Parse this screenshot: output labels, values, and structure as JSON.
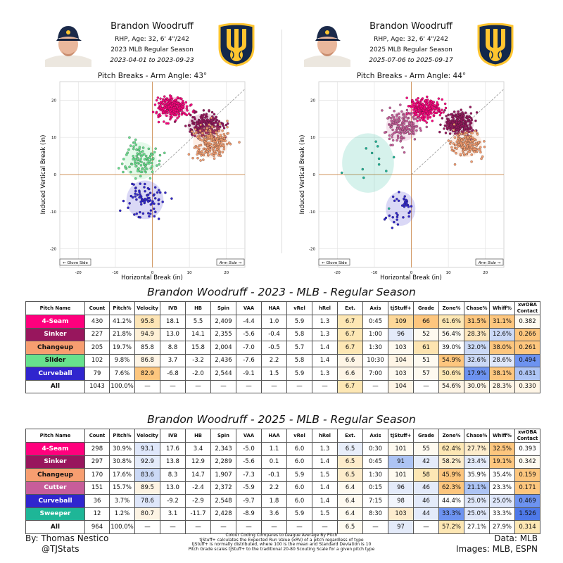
{
  "left_header": {
    "name": "Brandon Woodruff",
    "info": "RHP, Age: 32, 6' 4\"/242",
    "season": "2023 MLB Regular Season",
    "dates": "2023-04-01 to 2023-09-23"
  },
  "right_header": {
    "name": "Brandon Woodruff",
    "info": "RHP, Age: 32, 6' 4\"/242",
    "season": "2025 MLB Regular Season",
    "dates": "2025-07-06 to 2025-09-17"
  },
  "left_plot": {
    "title": "Pitch Breaks - Arm Angle: 43°",
    "xlabel": "Horizontal Break (in)",
    "ylabel": "Induced Vertical Break (in)",
    "glove": "← Glove Side",
    "arm": "Arm Side →"
  },
  "right_plot": {
    "title": "Pitch Breaks - Arm Angle: 44°",
    "xlabel": "Horizontal Break (in)",
    "ylabel": "Induced Vertical Break (in)",
    "glove": "← Glove Side",
    "arm": "Arm Side →"
  },
  "x_ticks": [
    "-20",
    "-10",
    "0",
    "10",
    "20"
  ],
  "y_ticks": [
    "20",
    "10",
    "0",
    "-10",
    "-20"
  ],
  "table1_title": "Brandon Woodruff - 2023 - MLB - Regular Season",
  "table2_title": "Brandon Woodruff - 2025 - MLB - Regular Season",
  "columns": [
    "Pitch Name",
    "Count",
    "Pitch%",
    "Velocity",
    "IVB",
    "HB",
    "Spin",
    "VAA",
    "HAA",
    "vRel",
    "hRel",
    "Ext.",
    "Axis",
    "tjStuff+",
    "Grade",
    "Zone%",
    "Chase%",
    "Whiff%",
    "xwOBA Contact"
  ],
  "table1_rows": [
    {
      "cells": [
        "4-Seam",
        "430",
        "41.2%",
        "95.8",
        "18.1",
        "5.5",
        "2,409",
        "-4.4",
        "1.0",
        "5.9",
        "1.3",
        "6.7",
        "0:45",
        "109",
        "66",
        "61.6%",
        "31.5%",
        "31.1%",
        "0.382"
      ],
      "bg": {
        "0": "#ff007d",
        "3": "#fde5b6",
        "11": "#fde7b4",
        "13": "#fdd899",
        "14": "#fdc67e",
        "15": "#fde7b4",
        "16": "#fdc67e",
        "17": "#fdc67e",
        "18": "#fefaf0"
      }
    },
    {
      "cells": [
        "Sinker",
        "227",
        "21.8%",
        "94.9",
        "13.0",
        "14.1",
        "2,355",
        "-5.6",
        "-0.4",
        "5.8",
        "1.3",
        "6.7",
        "1:00",
        "96",
        "52",
        "56.4%",
        "28.3%",
        "12.6%",
        "0.266"
      ],
      "bg": {
        "0": "#98165d",
        "3": "#fef0d6",
        "11": "#fde7b4",
        "13": "#e4ebfa",
        "14": "#fefaf0",
        "15": "#fefaf0",
        "16": "#fde6bd",
        "17": "#cbd9f6",
        "18": "#fdc67e"
      }
    },
    {
      "cells": [
        "Changeup",
        "205",
        "19.7%",
        "85.8",
        "8.8",
        "15.8",
        "2,004",
        "-7.0",
        "-0.5",
        "5.7",
        "1.4",
        "6.7",
        "1:30",
        "103",
        "61",
        "39.0%",
        "32.0%",
        "38.0%",
        "0.261"
      ],
      "bg": {
        "0": "#f79e70",
        "11": "#fde7b4",
        "13": "#fefaf0",
        "14": "#fde4b0",
        "15": "#fefefe",
        "16": "#cbd9f6",
        "17": "#fdc67e",
        "18": "#fdc67e"
      }
    },
    {
      "cells": [
        "Slider",
        "102",
        "9.8%",
        "86.8",
        "3.7",
        "-3.2",
        "2,436",
        "-7.6",
        "2.2",
        "5.8",
        "1.4",
        "6.6",
        "10:30",
        "104",
        "51",
        "54.9%",
        "32.6%",
        "28.6%",
        "0.494"
      ],
      "bg": {
        "0": "#67e18d",
        "3": "#fef5e6",
        "11": "#fef5e6",
        "13": "#fef5e6",
        "14": "#fefaf0",
        "15": "#fdc67e",
        "16": "#cbd9f6",
        "17": "#dfe7fa",
        "18": "#6d93f0"
      }
    },
    {
      "cells": [
        "Curveball",
        "79",
        "7.6%",
        "82.9",
        "-6.8",
        "-2.0",
        "2,544",
        "-9.1",
        "1.5",
        "5.9",
        "1.3",
        "6.6",
        "7:00",
        "103",
        "57",
        "50.6%",
        "17.9%",
        "38.1%",
        "0.431"
      ],
      "bg": {
        "0": "#3025ce",
        "3": "#fdc67e",
        "11": "#fef5e6",
        "13": "#fefaf0",
        "14": "#fefaf0",
        "15": "#fde7b4",
        "16": "#6d93f0",
        "17": "#fdc67e",
        "18": "#adc4f4"
      }
    },
    {
      "cells": [
        "All",
        "1043",
        "100.0%",
        "—",
        "—",
        "—",
        "—",
        "—",
        "—",
        "—",
        "—",
        "6.7",
        "—",
        "104",
        "—",
        "54.6%",
        "30.0%",
        "28.3%",
        "0.330"
      ],
      "bg": {
        "11": "#fde7b4",
        "13": "#fef5e6",
        "15": "#fef5e6",
        "16": "#fef5e6",
        "17": "#fef5e6",
        "18": "#fef5e6"
      }
    }
  ],
  "table2_rows": [
    {
      "cells": [
        "4-Seam",
        "298",
        "30.9%",
        "93.1",
        "17.6",
        "3.4",
        "2,343",
        "-5.0",
        "1.1",
        "6.0",
        "1.3",
        "6.5",
        "0:30",
        "101",
        "55",
        "62.4%",
        "27.7%",
        "32.5%",
        "0.393"
      ],
      "bg": {
        "0": "#ff007d",
        "3": "#dfe7fa",
        "11": "#e8eefa",
        "13": "#fefaf0",
        "14": "#fefaf0",
        "15": "#fde7b4",
        "16": "#fdeccb",
        "17": "#fdc67e",
        "18": "#fefefe"
      }
    },
    {
      "cells": [
        "Sinker",
        "297",
        "30.8%",
        "92.9",
        "13.8",
        "12.9",
        "2,289",
        "-5.6",
        "0.1",
        "6.0",
        "1.4",
        "6.5",
        "0:45",
        "91",
        "42",
        "58.2%",
        "23.4%",
        "19.1%",
        "0.342"
      ],
      "bg": {
        "0": "#98165d",
        "3": "#e4ebfa",
        "11": "#fdeccb",
        "13": "#adc4f4",
        "14": "#e4ebfa",
        "15": "#fdeccb",
        "16": "#e4ebfa",
        "17": "#fdc67e",
        "18": "#fefaf0"
      }
    },
    {
      "cells": [
        "Changeup",
        "170",
        "17.6%",
        "83.6",
        "8.3",
        "14.7",
        "1,907",
        "-7.3",
        "-0.1",
        "5.9",
        "1.5",
        "6.5",
        "1:30",
        "101",
        "58",
        "45.9%",
        "35.9%",
        "35.4%",
        "0.159"
      ],
      "bg": {
        "0": "#f79e70",
        "3": "#cbd9f6",
        "11": "#fdeccb",
        "13": "#fefaf0",
        "14": "#fde7b4",
        "15": "#fdc67e",
        "16": "#fefefe",
        "17": "#fefefe",
        "18": "#fdc67e"
      }
    },
    {
      "cells": [
        "Cutter",
        "151",
        "15.7%",
        "89.5",
        "13.0",
        "-2.4",
        "2,372",
        "-5.9",
        "2.2",
        "6.0",
        "1.4",
        "6.4",
        "0:15",
        "96",
        "46",
        "62.3%",
        "21.1%",
        "23.3%",
        "0.171"
      ],
      "bg": {
        "0": "#c75d9a",
        "3": "#fdf4e4",
        "11": "#fefaf0",
        "13": "#e4ebfa",
        "14": "#e4ebfa",
        "15": "#fdc67e",
        "16": "#adc4f4",
        "17": "#fefefe",
        "18": "#fdc67e"
      }
    },
    {
      "cells": [
        "Curveball",
        "36",
        "3.7%",
        "78.6",
        "-9.2",
        "-2.9",
        "2,548",
        "-9.7",
        "1.8",
        "6.0",
        "1.4",
        "6.4",
        "7:15",
        "98",
        "46",
        "44.4%",
        "25.0%",
        "25.0%",
        "0.469"
      ],
      "bg": {
        "0": "#3025ce",
        "3": "#dfe7fa",
        "11": "#fefaf0",
        "13": "#f2f5fc",
        "14": "#e4ebfa",
        "15": "#fefefe",
        "16": "#dfe7fa",
        "17": "#dfe7fa",
        "18": "#6d93f0"
      }
    },
    {
      "cells": [
        "Sweeper",
        "12",
        "1.2%",
        "80.7",
        "3.1",
        "-11.7",
        "2,428",
        "-8.9",
        "3.6",
        "5.9",
        "1.5",
        "6.4",
        "8:30",
        "103",
        "44",
        "33.3%",
        "25.0%",
        "33.3%",
        "1.526"
      ],
      "bg": {
        "0": "#1eb697",
        "3": "#fdf4e4",
        "11": "#fefaf0",
        "13": "#fdecce",
        "14": "#e4ebfa",
        "15": "#6d93f0",
        "16": "#dfe7fa",
        "17": "#fefefe",
        "18": "#4e79e9"
      }
    },
    {
      "cells": [
        "All",
        "964",
        "100.0%",
        "—",
        "—",
        "—",
        "—",
        "—",
        "—",
        "—",
        "—",
        "6.5",
        "—",
        "97",
        "—",
        "57.2%",
        "27.1%",
        "27.9%",
        "0.314"
      ],
      "bg": {
        "11": "#fefaf0",
        "13": "#e4ebfa",
        "15": "#fde7b4",
        "16": "#fefefe",
        "17": "#fefefe",
        "18": "#fde7b4"
      }
    }
  ],
  "footer": {
    "by": "By: Thomas Nestico",
    "handle": "@TJStats",
    "data": "Data: MLB",
    "images": "Images: MLB, ESPN",
    "notes": [
      "Colour Coding Compares to League Average By Pitch",
      "tjStuff+ calculates the Expected Run Value (xRV) of a pitch regardless of type",
      "tjStuff+ is normally distributed, where 100 is the mean and Standard Deviation is 10",
      "Pitch Grade scales tjStuff+ to the traditional 20-80 Scouting Scale for a given pitch type"
    ]
  },
  "colors": {
    "4-Seam": "#ff007d",
    "Sinker": "#98165d",
    "Changeup": "#f79e70",
    "Slider": "#67e18d",
    "Curveball": "#3025ce",
    "Cutter": "#c75d9a",
    "Sweeper": "#1eb697"
  },
  "chart_data": [
    {
      "type": "scatter",
      "title": "Pitch Breaks - Arm Angle: 43°",
      "xlabel": "Horizontal Break (in)",
      "ylabel": "Induced Vertical Break (in)",
      "xlim": [
        -25,
        25
      ],
      "ylim": [
        -25,
        25
      ],
      "series": [
        {
          "name": "4-Seam",
          "center": [
            5.5,
            18.1
          ],
          "spread": [
            2.0,
            1.4
          ],
          "count": 430
        },
        {
          "name": "Sinker",
          "center": [
            14.1,
            13.0
          ],
          "spread": [
            2.3,
            1.7
          ],
          "count": 227
        },
        {
          "name": "Changeup",
          "center": [
            15.8,
            8.8
          ],
          "spread": [
            2.4,
            2.2
          ],
          "count": 205
        },
        {
          "name": "Slider",
          "center": [
            -3.2,
            3.7
          ],
          "spread": [
            2.2,
            2.5
          ],
          "count": 102
        },
        {
          "name": "Curveball",
          "center": [
            -2.0,
            -6.8
          ],
          "spread": [
            2.5,
            2.6
          ],
          "count": 79
        }
      ]
    },
    {
      "type": "scatter",
      "title": "Pitch Breaks - Arm Angle: 44°",
      "xlabel": "Horizontal Break (in)",
      "ylabel": "Induced Vertical Break (in)",
      "xlim": [
        -25,
        25
      ],
      "ylim": [
        -25,
        25
      ],
      "series": [
        {
          "name": "4-Seam",
          "center": [
            3.4,
            17.6
          ],
          "spread": [
            2.0,
            1.3
          ],
          "count": 298
        },
        {
          "name": "Sinker",
          "center": [
            12.9,
            13.8
          ],
          "spread": [
            2.0,
            1.7
          ],
          "count": 297
        },
        {
          "name": "Changeup",
          "center": [
            14.7,
            8.3
          ],
          "spread": [
            2.2,
            1.8
          ],
          "count": 170
        },
        {
          "name": "Cutter",
          "center": [
            -2.4,
            13.0
          ],
          "spread": [
            2.2,
            2.0
          ],
          "count": 151
        },
        {
          "name": "Curveball",
          "center": [
            -2.9,
            -9.2
          ],
          "spread": [
            2.0,
            2.3
          ],
          "count": 36
        },
        {
          "name": "Sweeper",
          "center": [
            -11.7,
            3.1
          ],
          "spread": [
            3.5,
            4.0
          ],
          "count": 12
        }
      ]
    }
  ]
}
